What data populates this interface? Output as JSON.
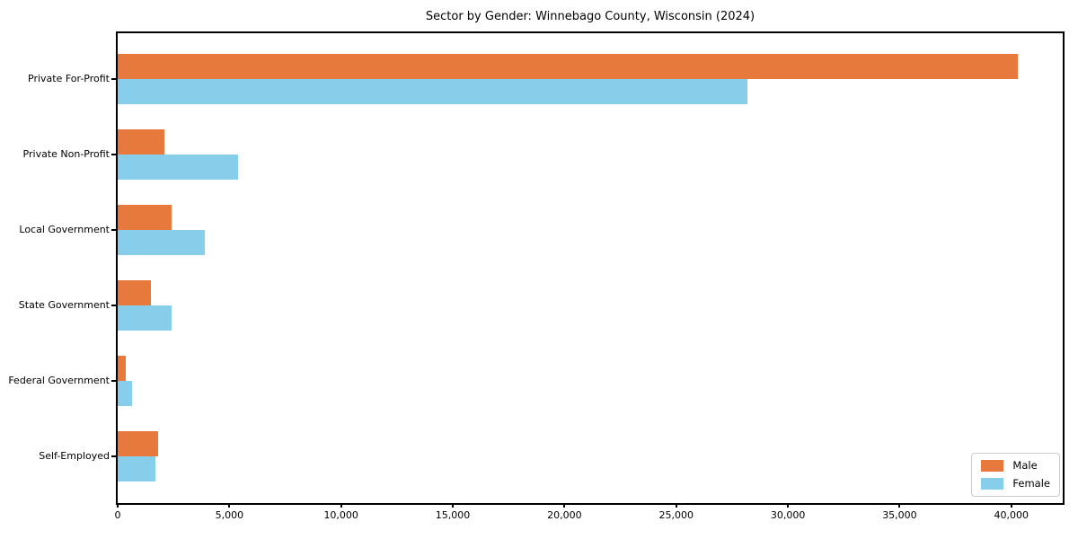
{
  "title": "Sector by Gender: Winnebago County, Wisconsin (2024)",
  "chart_data": {
    "type": "bar",
    "orientation": "horizontal",
    "title": "Sector by Gender: Winnebago County, Wisconsin (2024)",
    "categories": [
      "Private For-Profit",
      "Private Non-Profit",
      "Local Government",
      "State Government",
      "Federal Government",
      "Self-Employed"
    ],
    "series": [
      {
        "name": "Male",
        "color": "#e8793d",
        "values": [
          40300,
          2100,
          2400,
          1500,
          370,
          1800
        ]
      },
      {
        "name": "Female",
        "color": "#87ceeb",
        "values": [
          28200,
          5400,
          3900,
          2400,
          650,
          1700
        ]
      }
    ],
    "xlabel": "",
    "ylabel": "",
    "xlim": [
      0,
      42300
    ],
    "x_ticks": [
      0,
      5000,
      10000,
      15000,
      20000,
      25000,
      30000,
      35000,
      40000
    ],
    "x_tick_labels": [
      "0",
      "5,000",
      "10,000",
      "15,000",
      "20,000",
      "25,000",
      "30,000",
      "35,000",
      "40,000"
    ],
    "grid": false,
    "legend_position": "lower right"
  },
  "legend": {
    "items": [
      {
        "label": "Male",
        "color": "#e8793d"
      },
      {
        "label": "Female",
        "color": "#87ceeb"
      }
    ]
  }
}
